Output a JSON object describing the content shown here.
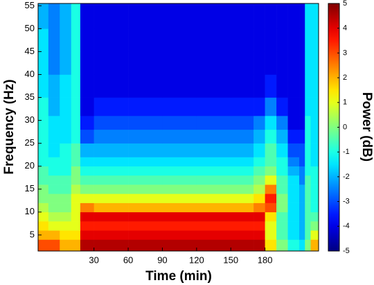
{
  "chart_data": {
    "type": "heatmap",
    "xlabel": "Time (min)",
    "ylabel": "Frequency (Hz)",
    "colorbar_label": "Power (dB)",
    "colormap": "jet",
    "xlim": [
      -19,
      227
    ],
    "xticks": [
      30,
      60,
      90,
      120,
      150,
      180
    ],
    "ylim": [
      1.5,
      55.5
    ],
    "yticks": [
      5,
      10,
      15,
      20,
      25,
      30,
      35,
      40,
      45,
      50,
      55
    ],
    "zlim": [
      -5,
      5
    ],
    "zticks": [
      -5,
      -4,
      -3,
      -2,
      -1,
      0,
      1,
      2,
      3,
      4,
      5
    ],
    "time_edges": [
      -19,
      -10,
      0,
      10,
      18,
      30,
      60,
      90,
      120,
      150,
      170,
      180,
      190,
      200,
      210,
      215,
      220,
      227
    ],
    "freq_edges": [
      1.5,
      4,
      6,
      8,
      10,
      12,
      14,
      16,
      18,
      20,
      22,
      25,
      28,
      31,
      35,
      40,
      45,
      50,
      55.5
    ],
    "z": [
      [
        3,
        3,
        2,
        2,
        4.5,
        4.5,
        4.5,
        4.5,
        4.5,
        4.5,
        4.5,
        1.5,
        0,
        -1,
        -1.5,
        0,
        2
      ],
      [
        2,
        2,
        1.5,
        1.5,
        4,
        4,
        4,
        4,
        4,
        4,
        4,
        1,
        -0.5,
        -1.5,
        -2,
        -0.5,
        1
      ],
      [
        1.5,
        1,
        1,
        1,
        3.5,
        3.5,
        3.5,
        3.5,
        3.5,
        3.5,
        3.5,
        1,
        -0.5,
        -1.5,
        -2,
        -0.5,
        0
      ],
      [
        1,
        0.5,
        0.5,
        1,
        4,
        4,
        4,
        4,
        4,
        4,
        4,
        1.5,
        -0.5,
        -1.5,
        -2,
        -0.5,
        -0.5
      ],
      [
        0.5,
        0,
        0,
        1,
        2.5,
        2,
        2,
        2,
        2,
        2,
        2.5,
        3,
        0,
        -1.5,
        -2,
        -0.5,
        -1
      ],
      [
        0,
        0,
        0,
        1,
        1,
        1,
        1,
        1,
        1,
        1,
        1.5,
        3.5,
        0,
        -1.5,
        -2,
        -0.5,
        -1
      ],
      [
        0,
        -0.5,
        -0.5,
        0.5,
        0,
        0,
        0,
        0,
        0,
        0,
        0.5,
        2.5,
        -0.5,
        -1.5,
        -2,
        -0.5,
        -1
      ],
      [
        -0.5,
        -0.5,
        -0.5,
        0,
        -0.5,
        -0.5,
        -0.5,
        -0.5,
        -0.5,
        -0.5,
        0,
        1,
        -0.5,
        -1.5,
        -2.5,
        -0.5,
        -1
      ],
      [
        -0.5,
        -1,
        -1,
        0,
        -1,
        -1,
        -1,
        -1,
        -1,
        -1,
        -0.5,
        0,
        -1,
        -2,
        -2.5,
        -1,
        -1
      ],
      [
        -1,
        -1,
        -1,
        -0.5,
        -1.5,
        -1.5,
        -1.5,
        -1.5,
        -1.5,
        -1.5,
        -1,
        -0.5,
        -1,
        -2.5,
        -3,
        -1,
        -1.5
      ],
      [
        -1,
        -1.5,
        -1,
        -0.5,
        -2,
        -2,
        -2,
        -2,
        -2,
        -2,
        -1.5,
        -0.5,
        -1.5,
        -3,
        -3,
        -1,
        -1.5
      ],
      [
        -1,
        -1.5,
        -1.5,
        -1,
        -3,
        -2.5,
        -2.5,
        -2.5,
        -2.5,
        -2.5,
        -2,
        -1,
        -2,
        -3.5,
        -3.5,
        -1,
        -1.5
      ],
      [
        -1,
        -1.5,
        -1.5,
        -1,
        -3.5,
        -3,
        -3,
        -3,
        -3,
        -3,
        -2.5,
        -1.5,
        -2.5,
        -4,
        -4,
        -1,
        -1.5
      ],
      [
        -1,
        -2,
        -1.5,
        -1,
        -4,
        -3.5,
        -3.5,
        -3.5,
        -3.5,
        -3.5,
        -3.5,
        -2.5,
        -3.5,
        -4,
        -4,
        -1.5,
        -1.5
      ],
      [
        -1.5,
        -2,
        -1.5,
        -1,
        -4,
        -4,
        -4,
        -4,
        -4,
        -4,
        -4,
        -3.5,
        -4,
        -4,
        -4,
        -1.5,
        -1.5
      ],
      [
        -1.5,
        -2.5,
        -2,
        -1,
        -4,
        -4,
        -4,
        -4,
        -4,
        -4,
        -4,
        -4,
        -4,
        -4,
        -4,
        -1.5,
        -1.5
      ],
      [
        -1.5,
        -2.5,
        -2,
        -1,
        -4,
        -4,
        -4,
        -4,
        -4,
        -4,
        -4,
        -4,
        -4,
        -4,
        -4,
        -1.5,
        -1.5
      ],
      [
        -2,
        -2.5,
        -2,
        -1,
        -4,
        -4,
        -4,
        -4,
        -4,
        -4,
        -4,
        -4,
        -4,
        -4,
        -4,
        -1.5,
        -1.5
      ]
    ]
  }
}
